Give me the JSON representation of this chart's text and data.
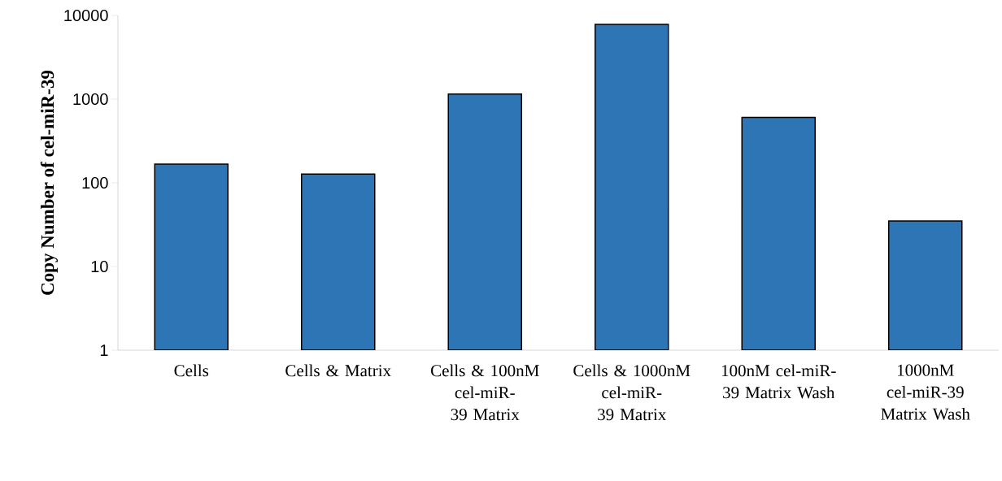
{
  "chart_data": {
    "type": "bar",
    "ylabel": "Copy Number of cel-miR-39",
    "categories": [
      "Cells",
      "Cells & Matrix",
      "Cells & 100nM cel-miR-39 Matrix",
      "Cells & 1000nM cel-miR-39 Matrix",
      "100nM cel-miR-39 Matrix Wash",
      "1000nM cel-miR-39 Matrix Wash"
    ],
    "values": [
      167,
      127,
      1150,
      7800,
      606,
      35
    ],
    "color": "#2e75b6",
    "log": "y",
    "ylim": [
      1,
      10000
    ],
    "yticks": [
      1,
      10,
      100,
      1000,
      10000
    ],
    "grid": false
  }
}
